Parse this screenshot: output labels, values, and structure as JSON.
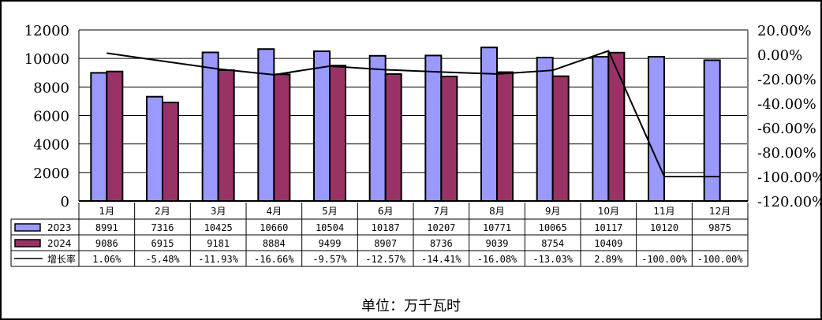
{
  "chart_data": {
    "type": "bar",
    "subtype": "combo bar + line with data table",
    "categories": [
      "1月",
      "2月",
      "3月",
      "4月",
      "5月",
      "6月",
      "7月",
      "8月",
      "9月",
      "10月",
      "11月",
      "12月"
    ],
    "series": [
      {
        "name": "2023",
        "type": "bar",
        "axis": "left",
        "color": "#9999FF",
        "values": [
          8991,
          7316,
          10425,
          10660,
          10504,
          10187,
          10207,
          10771,
          10065,
          10117,
          10120,
          9875
        ]
      },
      {
        "name": "2024",
        "type": "bar",
        "axis": "left",
        "color": "#993366",
        "values": [
          9086,
          6915,
          9181,
          8884,
          9499,
          8907,
          8736,
          9039,
          8754,
          10409,
          null,
          null
        ]
      },
      {
        "name": "增长率",
        "type": "line",
        "axis": "right",
        "color": "#000000",
        "values": [
          1.06,
          -5.48,
          -11.93,
          -16.66,
          -9.57,
          -12.57,
          -14.41,
          -16.08,
          -13.03,
          2.89,
          -100.0,
          -100.0
        ],
        "labels": [
          "1.06%",
          "-5.48%",
          "-11.93%",
          "-16.66%",
          "-9.57%",
          "-12.57%",
          "-14.41%",
          "-16.08%",
          "-13.03%",
          "2.89%",
          "-100.00%",
          "-100.00%"
        ]
      }
    ],
    "title": "",
    "xlabel": "",
    "ylabel": "",
    "unit_label": "单位：万千瓦时",
    "ylim": [
      0,
      12000
    ],
    "yticks": [
      "0",
      "2000",
      "4000",
      "6000",
      "8000",
      "10000",
      "12000"
    ],
    "y2lim": [
      -120,
      20
    ],
    "y2ticks": [
      "20.00%",
      "0.00%",
      "-20.00%",
      "-40.00%",
      "-60.00%",
      "-80.00%",
      "-100.00%",
      "-120.00%"
    ],
    "grid": true,
    "legend_position": "data table (left)"
  },
  "table": {
    "rows": [
      {
        "label": "2023",
        "legend": "bar-2023",
        "cells": [
          "8991",
          "7316",
          "10425",
          "10660",
          "10504",
          "10187",
          "10207",
          "10771",
          "10065",
          "10117",
          "10120",
          "9875"
        ]
      },
      {
        "label": "2024",
        "legend": "bar-2024",
        "cells": [
          "9086",
          "6915",
          "9181",
          "8884",
          "9499",
          "8907",
          "8736",
          "9039",
          "8754",
          "10409",
          "",
          ""
        ]
      },
      {
        "label": "增长率",
        "legend": "line",
        "cells": [
          "1.06%",
          "-5.48%",
          "-11.93%",
          "-16.66%",
          "-9.57%",
          "-12.57%",
          "-14.41%",
          "-16.08%",
          "-13.03%",
          "2.89%",
          "-100.00%",
          "-100.00%"
        ]
      }
    ]
  },
  "footer": {
    "unit": "单位：万千瓦时"
  }
}
